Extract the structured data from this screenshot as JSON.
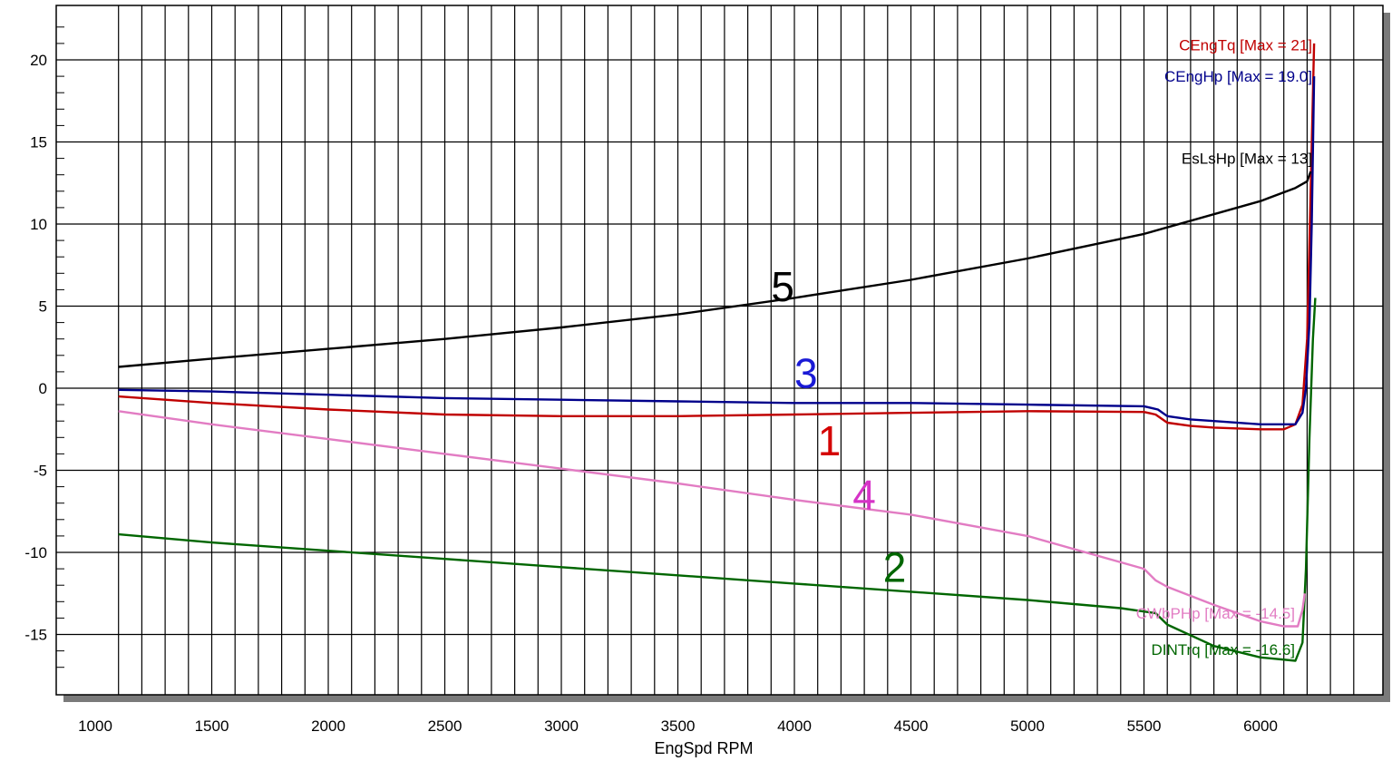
{
  "chart_data": {
    "type": "line",
    "xlabel": "EngSpd RPM",
    "ylabel": "",
    "xlim": [
      900,
      6500
    ],
    "ylim": [
      -18.5,
      23
    ],
    "x_ticks": [
      1000,
      1500,
      2000,
      2500,
      3000,
      3500,
      4000,
      4500,
      5000,
      5500,
      6000
    ],
    "y_ticks": [
      -15,
      -10,
      -5,
      0,
      5,
      10,
      15,
      20
    ],
    "grid": true,
    "legend_placement": "right, next to each series end",
    "series": [
      {
        "name": "CEngTq",
        "legend": "CEngTq [Max = 21]",
        "marker": "1",
        "color": "#c00000",
        "x": [
          1100,
          1500,
          2000,
          2500,
          3000,
          3500,
          4000,
          4500,
          5000,
          5500,
          5550,
          5600,
          5700,
          5800,
          6000,
          6100,
          6150,
          6180,
          6200,
          6215,
          6230
        ],
        "y": [
          -0.5,
          -0.9,
          -1.3,
          -1.6,
          -1.7,
          -1.7,
          -1.6,
          -1.5,
          -1.4,
          -1.45,
          -1.6,
          -2.1,
          -2.3,
          -2.4,
          -2.5,
          -2.5,
          -2.2,
          -1.0,
          3.0,
          12.0,
          21.0
        ],
        "marker_pos": [
          4150,
          -3.2
        ]
      },
      {
        "name": "DINTrq",
        "legend": "DINTrq [Max = -16.6]",
        "marker": "2",
        "color": "#006600",
        "x": [
          1100,
          1500,
          2000,
          2500,
          3000,
          3500,
          4000,
          4500,
          5000,
          5400,
          5550,
          5600,
          5800,
          6000,
          6150,
          6180,
          6195,
          6210,
          6225,
          6235
        ],
        "y": [
          -8.9,
          -9.4,
          -9.9,
          -10.4,
          -10.9,
          -11.4,
          -11.9,
          -12.4,
          -12.9,
          -13.4,
          -13.7,
          -14.4,
          -15.7,
          -16.4,
          -16.6,
          -15.5,
          -11.0,
          -3.0,
          3.0,
          5.5
        ],
        "marker_pos": [
          4430,
          -10.9
        ]
      },
      {
        "name": "CEngHp",
        "legend": "CEngHp [Max = 19.0]",
        "marker": "3",
        "color": "#00008b",
        "x": [
          1100,
          1500,
          2000,
          2500,
          3000,
          3500,
          4000,
          4500,
          5000,
          5500,
          5560,
          5600,
          5700,
          5800,
          6000,
          6150,
          6180,
          6195,
          6210,
          6220,
          6230
        ],
        "y": [
          -0.1,
          -0.2,
          -0.4,
          -0.6,
          -0.7,
          -0.8,
          -0.9,
          -0.9,
          -1.0,
          -1.1,
          -1.3,
          -1.7,
          -1.9,
          -2.0,
          -2.2,
          -2.2,
          -1.5,
          0.0,
          4.0,
          10.0,
          19.0
        ],
        "marker_pos": [
          4050,
          0.9
        ]
      },
      {
        "name": "CWbPHp",
        "legend": "CWbPHp [Max = -14.5]",
        "marker": "4",
        "color": "#e27cc3",
        "x": [
          1100,
          1500,
          2000,
          2500,
          3000,
          3500,
          4000,
          4500,
          5000,
          5500,
          5550,
          5600,
          5800,
          6000,
          6100,
          6160,
          6180,
          6190
        ],
        "y": [
          -1.4,
          -2.2,
          -3.1,
          -4.0,
          -4.9,
          -5.8,
          -6.8,
          -7.7,
          -9.0,
          -11.0,
          -11.7,
          -12.1,
          -13.2,
          -14.2,
          -14.5,
          -14.5,
          -13.5,
          -12.5
        ],
        "marker_pos": [
          4300,
          -6.5
        ],
        "marker_color": "#d633c7"
      },
      {
        "name": "EsLsHp",
        "legend": "EsLsHp [Max = 13]",
        "marker": "5",
        "color": "#000000",
        "x": [
          1100,
          1500,
          2000,
          2500,
          3000,
          3500,
          4000,
          4500,
          5000,
          5500,
          6000,
          6150,
          6200,
          6215
        ],
        "y": [
          1.3,
          1.8,
          2.4,
          3.0,
          3.7,
          4.5,
          5.5,
          6.6,
          7.9,
          9.4,
          11.4,
          12.2,
          12.6,
          13.2
        ],
        "marker_pos": [
          3950,
          6.2
        ]
      }
    ]
  }
}
